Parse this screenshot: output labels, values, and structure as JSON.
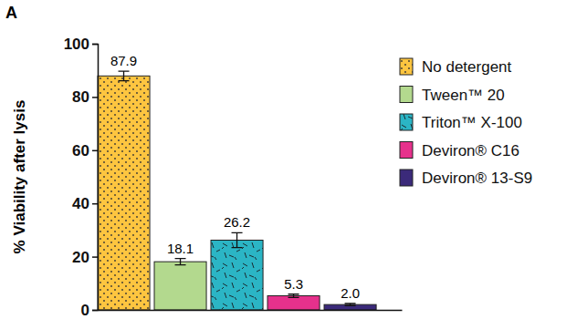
{
  "chart_data": {
    "type": "bar",
    "title": "A",
    "ylabel": "% Viability after lysis",
    "categories": [
      "No detergent",
      "Tween™ 20",
      "Triton™ X-100",
      "Deviron® C16",
      "Deviron® 13-S9"
    ],
    "values": [
      87.9,
      18.1,
      26.2,
      5.3,
      2.0
    ],
    "value_labels": [
      "87.9",
      "18.1",
      "26.2",
      "5.3",
      "2.0"
    ],
    "errors": [
      1.8,
      1.2,
      2.8,
      0.6,
      0.4
    ],
    "colors": [
      "#fdc540",
      "#b3d98e",
      "#2bb5c5",
      "#e6318c",
      "#3b2a7a"
    ],
    "ylim": [
      0,
      100
    ],
    "yticks": [
      0,
      20,
      40,
      60,
      80,
      100
    ],
    "data_labels": true,
    "legend": "right",
    "tick_labels": "y",
    "grid": false
  }
}
